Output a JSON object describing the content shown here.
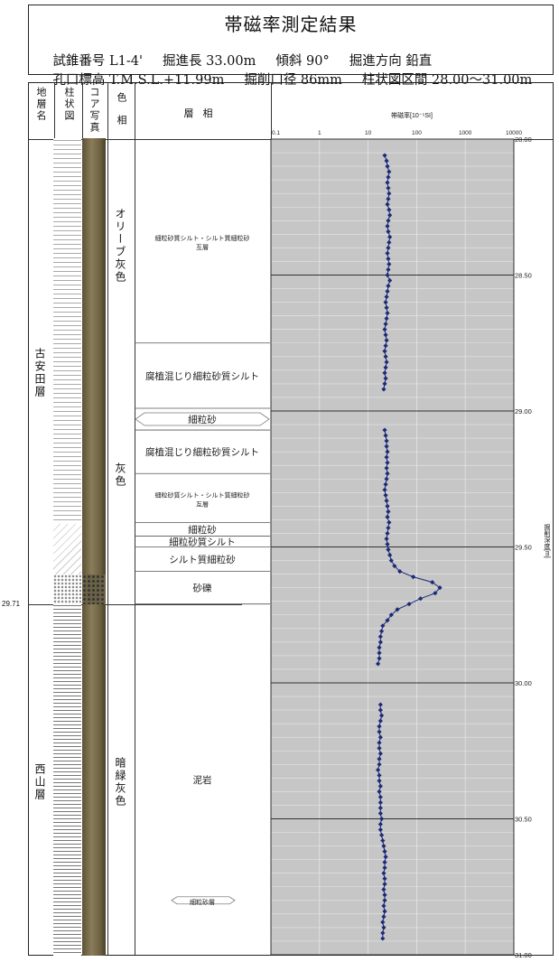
{
  "header": {
    "title": "帯磁率測定結果",
    "row1": [
      "試錐番号 L1-4'",
      "掘進長 33.00m",
      "傾斜 90°",
      "掘進方向 鉛直"
    ],
    "row2": [
      "孔口標高 T.M.S.L.+11.99m",
      "掘削口径 86mm",
      "柱状図区間 28.00～31.00m"
    ]
  },
  "columns": {
    "formation": "地層名",
    "columnar": "柱状図",
    "core_photo": "コア写真",
    "color": "色相",
    "facies": "層相",
    "chart": "帯磁率[10⁻⁵SI]"
  },
  "formations": [
    {
      "name": "古安田層",
      "top": 28.0,
      "bottom": 29.71
    },
    {
      "name": "西山層",
      "top": 29.71,
      "bottom": 31.0
    }
  ],
  "boundary_label": "29.71",
  "colors": [
    {
      "name": "オリーブ灰色",
      "top": 28.0,
      "bottom": 28.75
    },
    {
      "name": "灰色",
      "top": 28.75,
      "bottom": 29.71
    },
    {
      "name": "暗緑灰色",
      "top": 29.71,
      "bottom": 31.0
    }
  ],
  "facies": [
    {
      "text": "細粒砂質シルト・シルト質細粒砂",
      "text2": "互層",
      "top": 28.0,
      "bottom": 28.75,
      "small": true
    },
    {
      "text": "腐植混じり細粒砂質シルト",
      "top": 28.75,
      "bottom": 28.99
    },
    {
      "text": "細粒砂",
      "top": 28.99,
      "bottom": 29.07
    },
    {
      "text": "腐植混じり細粒砂質シルト",
      "top": 29.07,
      "bottom": 29.23
    },
    {
      "text": "細粒砂質シルト・シルト質細粒砂",
      "text2": "互層",
      "top": 29.23,
      "bottom": 29.41,
      "small": true
    },
    {
      "text": "細粒砂",
      "top": 29.41,
      "bottom": 29.46
    },
    {
      "text": "細粒砂質シルト",
      "top": 29.46,
      "bottom": 29.5
    },
    {
      "text": "シルト質細粒砂",
      "top": 29.5,
      "bottom": 29.59
    },
    {
      "text": "砂礫",
      "top": 29.59,
      "bottom": 29.71
    },
    {
      "text": "泥岩",
      "top": 29.71,
      "bottom": 31.0
    },
    {
      "text": "細粒砂層",
      "top": 30.78,
      "bottom": 30.82,
      "small": true,
      "lens": true
    }
  ],
  "chart_data": {
    "type": "line",
    "xlabel": "帯磁率[10⁻⁵SI]",
    "ylabel": "掘削深度[m]",
    "xscale": "log",
    "xlim": [
      0.1,
      10000
    ],
    "xticks": [
      "0.1",
      "1",
      "10",
      "100",
      "1000",
      "10000"
    ],
    "ylim": [
      28.0,
      31.0
    ],
    "yticks": [
      "28.00",
      "28.50",
      "29.00",
      "29.50",
      "30.00",
      "30.50",
      "31.00"
    ],
    "grid": true,
    "series": [
      {
        "segments": [
          {
            "depth": [
              28.06,
              28.08,
              28.1,
              28.12,
              28.14,
              28.16,
              28.18,
              28.2,
              28.22,
              28.24,
              28.26,
              28.28,
              28.3,
              28.32,
              28.34,
              28.36,
              28.38,
              28.4,
              28.42,
              28.44,
              28.46,
              28.48,
              28.5,
              28.52,
              28.54,
              28.56,
              28.58,
              28.6,
              28.62,
              28.64,
              28.66,
              28.68,
              28.7,
              28.72,
              28.74,
              28.76,
              28.78,
              28.8,
              28.82,
              28.84,
              28.86,
              28.88,
              28.9,
              28.92
            ],
            "value": [
              22,
              24,
              25,
              27,
              26,
              25,
              26,
              27,
              26,
              25,
              27,
              28,
              26,
              25,
              26,
              28,
              27,
              26,
              25,
              26,
              27,
              26,
              25,
              28,
              26,
              25,
              24,
              23,
              24,
              25,
              24,
              23,
              22,
              23,
              24,
              23,
              22,
              23,
              24,
              23,
              22,
              23,
              22,
              21
            ]
          },
          {
            "depth": [
              29.07,
              29.09,
              29.11,
              29.13,
              29.15,
              29.17,
              29.19,
              29.21,
              29.23,
              29.25,
              29.27,
              29.29,
              29.31,
              29.33,
              29.35,
              29.37,
              29.39,
              29.41,
              29.43,
              29.45,
              29.47,
              29.49,
              29.51,
              29.53,
              29.55,
              29.57,
              29.59,
              29.61,
              29.63,
              29.65,
              29.67,
              29.69,
              29.71,
              29.73,
              29.75,
              29.77,
              29.79,
              29.81,
              29.83,
              29.85,
              29.87,
              29.89,
              29.91,
              29.93
            ],
            "value": [
              22,
              23,
              24,
              24,
              25,
              24,
              25,
              24,
              25,
              24,
              23,
              22,
              23,
              24,
              25,
              26,
              25,
              27,
              26,
              25,
              24,
              25,
              26,
              28,
              30,
              35,
              45,
              85,
              210,
              300,
              240,
              120,
              70,
              40,
              30,
              25,
              20,
              19,
              18,
              18,
              17,
              17,
              17,
              16
            ]
          },
          {
            "depth": [
              30.08,
              30.1,
              30.12,
              30.14,
              30.16,
              30.18,
              30.2,
              30.22,
              30.24,
              30.26,
              30.28,
              30.3,
              30.32,
              30.34,
              30.36,
              30.38,
              30.4,
              30.42,
              30.44,
              30.46,
              30.48,
              30.5,
              30.52,
              30.54,
              30.56,
              30.58,
              30.6,
              30.62,
              30.64,
              30.66,
              30.68,
              30.7,
              30.72,
              30.74,
              30.76,
              30.78,
              30.8,
              30.82,
              30.84,
              30.86,
              30.88,
              30.9,
              30.92,
              30.94
            ],
            "value": [
              18,
              18,
              19,
              18,
              17,
              17,
              18,
              17,
              17,
              18,
              17,
              17,
              16,
              17,
              17,
              18,
              17,
              18,
              18,
              18,
              18,
              19,
              18,
              18,
              19,
              20,
              21,
              22,
              23,
              22,
              22,
              21,
              22,
              22,
              21,
              22,
              22,
              21,
              22,
              21,
              20,
              21,
              20,
              20
            ]
          }
        ]
      }
    ],
    "colors": {
      "marker": "#1c2a78",
      "plot_bg": "#c6c6c6",
      "grid": "#e6e6e6",
      "major_line": "#333333"
    }
  }
}
